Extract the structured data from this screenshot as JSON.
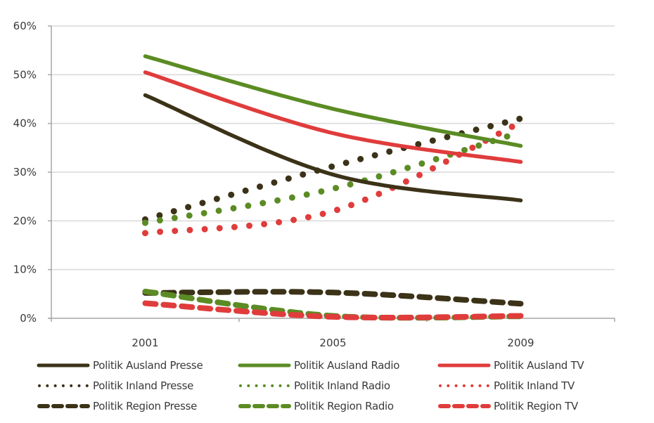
{
  "chart_data": {
    "type": "line",
    "title": "",
    "xlabel": "",
    "ylabel": "",
    "categories": [
      "2001",
      "2005",
      "2009"
    ],
    "ylim": [
      0,
      60
    ],
    "yticks": [
      "0%",
      "10%",
      "20%",
      "30%",
      "40%",
      "50%",
      "60%"
    ],
    "ytick_values": [
      0,
      10,
      20,
      30,
      40,
      50,
      60
    ],
    "grid": "horizontal",
    "legend_position": "bottom",
    "series": [
      {
        "name": "Politik Ausland Presse",
        "color": "#3b3218",
        "style": "solid",
        "values": [
          45.8,
          29.5,
          24.2
        ]
      },
      {
        "name": "Politik Ausland Radio",
        "color": "#5b8c24",
        "style": "solid",
        "values": [
          53.8,
          43.0,
          35.4
        ]
      },
      {
        "name": "Politik Ausland TV",
        "color": "#e03c3c",
        "style": "solid",
        "values": [
          50.5,
          38.0,
          32.1
        ]
      },
      {
        "name": "Politik Inland Presse",
        "color": "#3b3218",
        "style": "dotted",
        "values": [
          20.3,
          31.2,
          41.0
        ]
      },
      {
        "name": "Politik Inland Radio",
        "color": "#5b8c24",
        "style": "dotted",
        "values": [
          19.6,
          26.6,
          38.2
        ]
      },
      {
        "name": "Politik Inland TV",
        "color": "#e03c3c",
        "style": "dotted",
        "values": [
          17.5,
          22.0,
          40.2
        ]
      },
      {
        "name": "Politik Region Presse",
        "color": "#3b3218",
        "style": "dashed",
        "values": [
          5.2,
          5.3,
          3.0
        ]
      },
      {
        "name": "Politik Region Radio",
        "color": "#5b8c24",
        "style": "dashed",
        "values": [
          5.5,
          0.5,
          0.4
        ]
      },
      {
        "name": "Politik Region TV",
        "color": "#e03c3c",
        "style": "dashed",
        "values": [
          3.1,
          0.3,
          0.5
        ]
      }
    ]
  }
}
